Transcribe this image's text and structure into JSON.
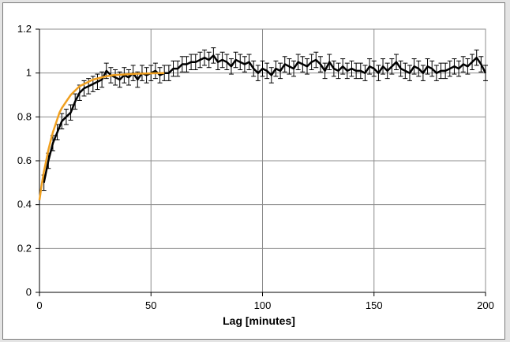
{
  "chart_data": {
    "type": "line",
    "title": "",
    "xlabel": "Lag [minutes]",
    "ylabel": "",
    "xlim": [
      0,
      200
    ],
    "ylim": [
      0,
      1.2
    ],
    "xticks": [
      0,
      50,
      100,
      150,
      200
    ],
    "yticks": [
      0,
      0.2,
      0.4,
      0.6,
      0.8,
      1,
      1.2
    ],
    "ytick_labels": [
      "0",
      "0.2",
      "0.4",
      "0.6",
      "0.8",
      "1",
      "1.2"
    ],
    "grid": true,
    "legend": "none",
    "series": [
      {
        "style": "line-with-error-bars",
        "color": "#000000",
        "x": [
          2,
          4,
          6,
          8,
          10,
          12,
          14,
          16,
          18,
          20,
          22,
          24,
          26,
          28,
          30,
          32,
          34,
          36,
          38,
          40,
          42,
          44,
          46,
          48,
          50,
          52,
          54,
          56,
          58,
          60,
          62,
          64,
          66,
          68,
          70,
          72,
          74,
          76,
          78,
          80,
          82,
          84,
          86,
          88,
          90,
          92,
          94,
          96,
          98,
          100,
          102,
          104,
          106,
          108,
          110,
          112,
          114,
          116,
          118,
          120,
          122,
          124,
          126,
          128,
          130,
          132,
          134,
          136,
          138,
          140,
          142,
          144,
          146,
          148,
          150,
          152,
          154,
          156,
          158,
          160,
          162,
          164,
          166,
          168,
          170,
          172,
          174,
          176,
          178,
          180,
          182,
          184,
          186,
          188,
          190,
          192,
          194,
          196,
          198,
          200
        ],
        "y": [
          0.5,
          0.6,
          0.68,
          0.73,
          0.78,
          0.8,
          0.82,
          0.87,
          0.91,
          0.93,
          0.94,
          0.95,
          0.96,
          0.97,
          1.01,
          0.99,
          0.98,
          0.97,
          0.99,
          0.98,
          1.0,
          0.97,
          1.0,
          0.99,
          1.0,
          1.01,
          0.99,
          1.0,
          1.0,
          1.02,
          1.02,
          1.04,
          1.04,
          1.05,
          1.05,
          1.06,
          1.07,
          1.06,
          1.08,
          1.05,
          1.06,
          1.05,
          1.03,
          1.06,
          1.05,
          1.04,
          1.05,
          1.02,
          1.0,
          1.02,
          1.01,
          0.99,
          1.02,
          1.01,
          1.04,
          1.03,
          1.02,
          1.05,
          1.04,
          1.03,
          1.05,
          1.06,
          1.04,
          1.01,
          1.05,
          1.02,
          1.01,
          1.03,
          1.01,
          1.02,
          1.01,
          1.01,
          1.0,
          1.03,
          1.02,
          1.0,
          1.03,
          1.01,
          1.03,
          1.05,
          1.02,
          1.01,
          1.0,
          1.03,
          1.02,
          1.0,
          1.03,
          1.02,
          1.0,
          1.01,
          1.01,
          1.02,
          1.03,
          1.02,
          1.04,
          1.03,
          1.05,
          1.07,
          1.04,
          1.0
        ],
        "error": 0.035
      },
      {
        "style": "fit",
        "color": "#f0a020",
        "x": [
          0,
          1,
          2,
          3,
          4,
          5,
          6,
          7,
          8,
          9,
          10,
          12,
          14,
          16,
          18,
          20,
          22,
          24,
          26,
          28,
          30,
          33,
          36,
          40,
          44,
          48,
          52,
          56
        ],
        "y": [
          0.42,
          0.49,
          0.55,
          0.6,
          0.65,
          0.69,
          0.73,
          0.76,
          0.79,
          0.82,
          0.84,
          0.87,
          0.9,
          0.92,
          0.94,
          0.95,
          0.96,
          0.97,
          0.975,
          0.98,
          0.985,
          0.99,
          0.992,
          0.995,
          0.997,
          0.998,
          0.999,
          1.0
        ]
      }
    ]
  }
}
